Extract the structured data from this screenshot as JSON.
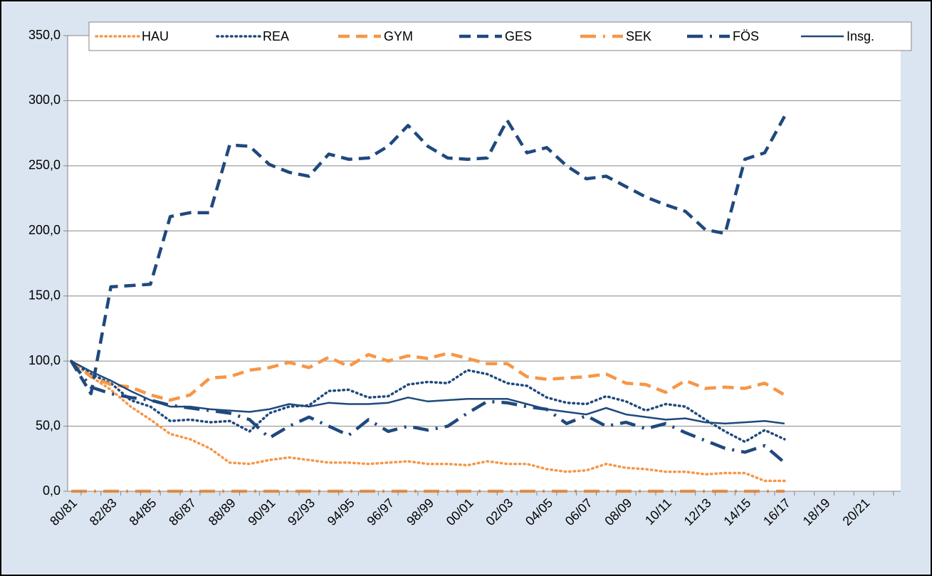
{
  "chart_data": {
    "type": "line",
    "categories": [
      "80/81",
      null,
      "82/83",
      null,
      "84/85",
      null,
      "86/87",
      null,
      "88/89",
      null,
      "90/91",
      null,
      "92/93",
      null,
      "94/95",
      null,
      "96/97",
      null,
      "98/99",
      null,
      "00/01",
      null,
      "02/03",
      null,
      "04/05",
      null,
      "06/07",
      null,
      "08/09",
      null,
      "10/11",
      null,
      "12/13",
      null,
      "14/15",
      null,
      "16/17",
      null,
      "18/19",
      null,
      "20/21",
      null
    ],
    "series": [
      {
        "name": "HAU",
        "color": "#f79646",
        "style": "dotted",
        "values": [
          100,
          88,
          78,
          65,
          55,
          44,
          40,
          33,
          22,
          21,
          24,
          26,
          24,
          22,
          22,
          21,
          22,
          23,
          21,
          21,
          20,
          23,
          21,
          21,
          17,
          15,
          16,
          21,
          18,
          17,
          15,
          15,
          13,
          14,
          14,
          8,
          8,
          null,
          null,
          null,
          null,
          null
        ]
      },
      {
        "name": "REA",
        "color": "#1f497d",
        "style": "dotted",
        "values": [
          100,
          90,
          83,
          70,
          65,
          54,
          55,
          53,
          54,
          46,
          60,
          65,
          66,
          77,
          78,
          72,
          73,
          82,
          84,
          83,
          93,
          90,
          83,
          81,
          72,
          68,
          67,
          73,
          69,
          62,
          67,
          65,
          55,
          46,
          38,
          47,
          40,
          null,
          null,
          null,
          null,
          null
        ]
      },
      {
        "name": "GYM",
        "color": "#f79646",
        "style": "dashed",
        "values": [
          100,
          88,
          82,
          80,
          74,
          70,
          74,
          87,
          88,
          93,
          95,
          99,
          95,
          103,
          96,
          105,
          100,
          104,
          102,
          106,
          102,
          98,
          98,
          88,
          86,
          87,
          88,
          90,
          83,
          82,
          76,
          85,
          79,
          80,
          79,
          83,
          74,
          null,
          null,
          null,
          null,
          null
        ]
      },
      {
        "name": "GES",
        "color": "#1f497d",
        "style": "dashed",
        "values": [
          100,
          75,
          157,
          158,
          159,
          211,
          214,
          214,
          266,
          265,
          251,
          245,
          242,
          259,
          255,
          256,
          265,
          281,
          265,
          256,
          255,
          256,
          285,
          260,
          264,
          250,
          240,
          242,
          234,
          226,
          220,
          215,
          201,
          198,
          255,
          260,
          288,
          null,
          null,
          null,
          null,
          null
        ]
      },
      {
        "name": "SEK",
        "color": "#f79646",
        "style": "dashdot",
        "values": [
          0,
          0,
          0,
          0,
          0,
          0,
          0,
          0,
          0,
          0,
          0,
          0,
          0,
          0,
          0,
          0,
          0,
          0,
          0,
          0,
          0,
          0,
          0,
          0,
          0,
          0,
          0,
          0,
          0,
          0,
          0,
          0,
          0,
          0,
          0,
          0,
          0,
          null,
          null,
          null,
          null,
          null
        ]
      },
      {
        "name": "FÖS",
        "color": "#1f497d",
        "style": "dashdot",
        "values": [
          100,
          80,
          75,
          72,
          70,
          66,
          64,
          62,
          60,
          55,
          41,
          50,
          57,
          50,
          43,
          55,
          46,
          50,
          47,
          50,
          60,
          69,
          68,
          65,
          63,
          52,
          58,
          50,
          53,
          48,
          52,
          45,
          39,
          33,
          30,
          35,
          22,
          null,
          null,
          null,
          null,
          null
        ]
      },
      {
        "name": "Insg.",
        "color": "#1f497d",
        "style": "solid",
        "values": [
          100,
          92,
          85,
          77,
          70,
          65,
          65,
          63,
          62,
          61,
          63,
          67,
          65,
          68,
          67,
          67,
          68,
          72,
          69,
          70,
          71,
          71,
          71,
          67,
          63,
          61,
          59,
          64,
          59,
          57,
          55,
          56,
          53,
          52,
          53,
          54,
          52,
          null,
          null,
          null,
          null,
          null
        ]
      }
    ],
    "ylim": [
      0,
      350
    ],
    "yticks": [
      {
        "value": 0,
        "label": "0,0"
      },
      {
        "value": 50,
        "label": "50,0"
      },
      {
        "value": 100,
        "label": "100,0"
      },
      {
        "value": 150,
        "label": "150,0"
      },
      {
        "value": 200,
        "label": "200,0"
      },
      {
        "value": 250,
        "label": "250,0"
      },
      {
        "value": 300,
        "label": "300,0"
      },
      {
        "value": 350,
        "label": "350,0"
      }
    ],
    "grid": true,
    "legend": "top"
  }
}
